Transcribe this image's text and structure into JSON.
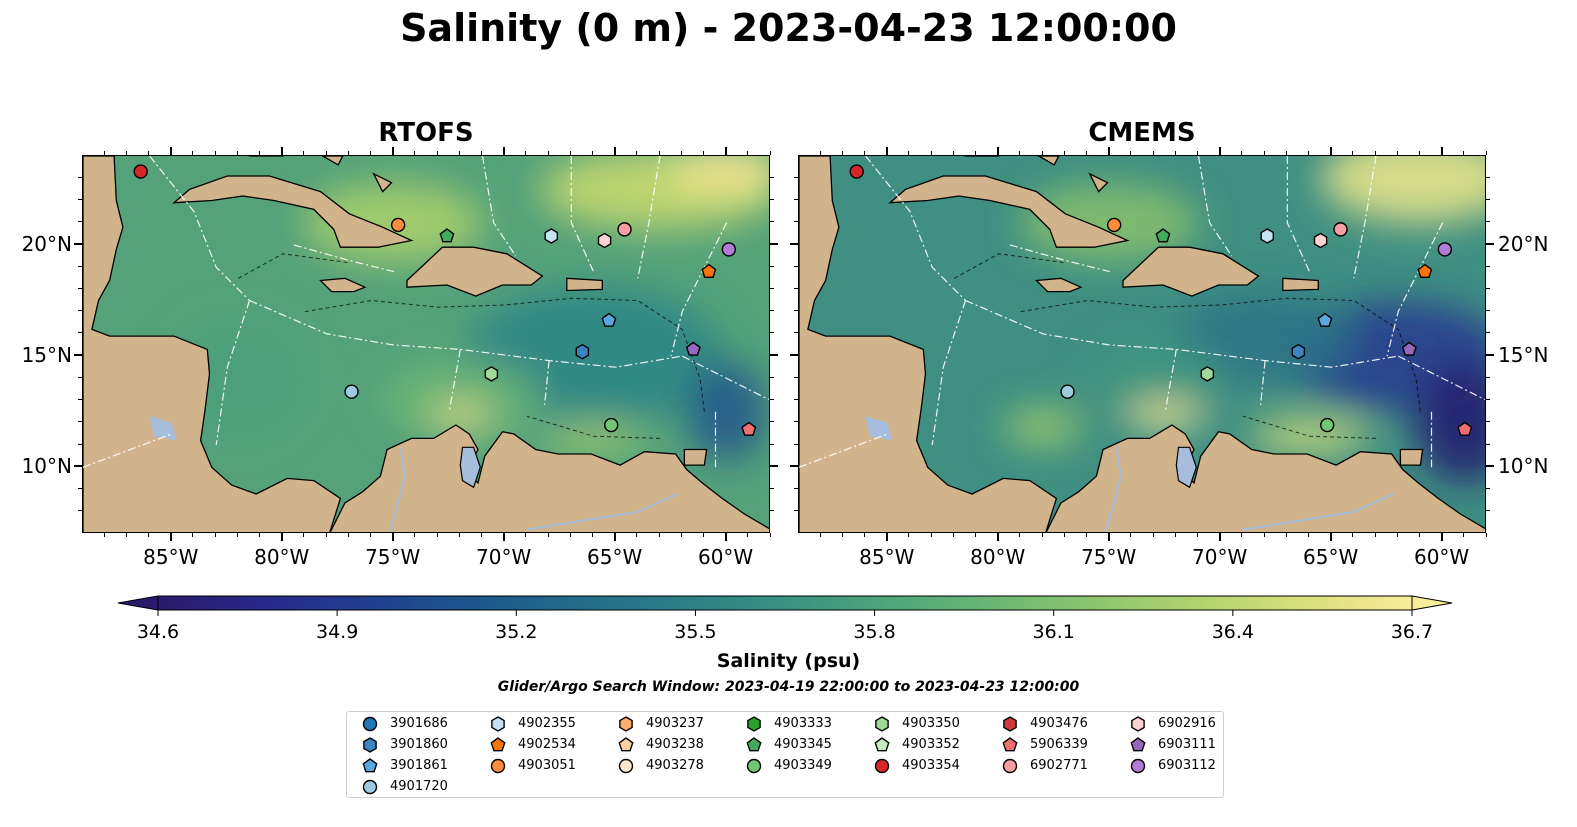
{
  "figure": {
    "title": "Salinity (0 m) - 2023-04-23 12:00:00",
    "panels": [
      {
        "title": "RTOFS"
      },
      {
        "title": "CMEMS"
      }
    ],
    "lon_ticks": [
      "85°W",
      "80°W",
      "75°W",
      "70°W",
      "65°W",
      "60°W"
    ],
    "lat_ticks": [
      "20°N",
      "15°N",
      "10°N"
    ],
    "extent": {
      "lon": [
        -89,
        -58
      ],
      "lat": [
        7,
        24
      ]
    },
    "colors": {
      "land": "#d2b48c",
      "ocean_outside": "#26195c",
      "lakes_rivers": "#a6bddb",
      "contour": "#000000",
      "eez_lines": "#ffffff"
    }
  },
  "colorbar": {
    "label": "Salinity (psu)",
    "colormap": "haline",
    "range": [
      34.6,
      36.7
    ],
    "extend": "both",
    "ticks": [
      "34.6",
      "34.9",
      "35.2",
      "35.5",
      "35.8",
      "36.1",
      "36.4",
      "36.7"
    ],
    "stops": [
      "#2a1a6b",
      "#27298a",
      "#1f3f8f",
      "#1c568c",
      "#226b89",
      "#2c7f86",
      "#3a9281",
      "#4ea67a",
      "#6bb773",
      "#8ec66e",
      "#b4d36f",
      "#d9df7e",
      "#f9ec9b"
    ]
  },
  "search_window": "Glider/Argo Search Window: 2023-04-19 22:00:00 to 2023-04-23 12:00:00",
  "legend": [
    {
      "id": "3901686",
      "marker": "circle",
      "color": "#1f77b4"
    },
    {
      "id": "3901860",
      "marker": "hexagon",
      "color": "#3a84c4"
    },
    {
      "id": "3901861",
      "marker": "pentagon",
      "color": "#5aa6e0"
    },
    {
      "id": "4901720",
      "marker": "circle",
      "color": "#9ecae1"
    },
    {
      "id": "4902355",
      "marker": "hexagon",
      "color": "#c6e2f5"
    },
    {
      "id": "4902534",
      "marker": "pentagon",
      "color": "#f97306"
    },
    {
      "id": "4903051",
      "marker": "circle",
      "color": "#fd8d3c"
    },
    {
      "id": "4903237",
      "marker": "hexagon",
      "color": "#fdae6b"
    },
    {
      "id": "4903238",
      "marker": "pentagon",
      "color": "#fdd0a2"
    },
    {
      "id": "4903278",
      "marker": "circle",
      "color": "#fee6ce"
    },
    {
      "id": "4903333",
      "marker": "hexagon",
      "color": "#2ca02c"
    },
    {
      "id": "4903345",
      "marker": "pentagon",
      "color": "#41ab5d"
    },
    {
      "id": "4903349",
      "marker": "circle",
      "color": "#74c476"
    },
    {
      "id": "4903350",
      "marker": "hexagon",
      "color": "#a1d99b"
    },
    {
      "id": "4903352",
      "marker": "pentagon",
      "color": "#c7e9c0"
    },
    {
      "id": "4903354",
      "marker": "circle",
      "color": "#d62728"
    },
    {
      "id": "4903476",
      "marker": "hexagon",
      "color": "#d03a3a"
    },
    {
      "id": "5906339",
      "marker": "pentagon",
      "color": "#f07070"
    },
    {
      "id": "6902771",
      "marker": "circle",
      "color": "#f4a0a0"
    },
    {
      "id": "6902916",
      "marker": "hexagon",
      "color": "#fcd3d3"
    },
    {
      "id": "6903111",
      "marker": "pentagon",
      "color": "#9467bd"
    },
    {
      "id": "6903112",
      "marker": "circle",
      "color": "#b07cd8"
    }
  ],
  "floats": [
    {
      "id": "4903354",
      "lon": -86.4,
      "lat": 23.3
    },
    {
      "id": "4903051",
      "lon": -74.8,
      "lat": 20.9
    },
    {
      "id": "4903345",
      "lon": -72.6,
      "lat": 20.4
    },
    {
      "id": "4902355",
      "lon": -67.9,
      "lat": 20.4
    },
    {
      "id": "6902916",
      "lon": -65.5,
      "lat": 20.2
    },
    {
      "id": "6902771",
      "lon": -64.6,
      "lat": 20.7
    },
    {
      "id": "6903112",
      "lon": -59.9,
      "lat": 19.8
    },
    {
      "id": "4902534",
      "lon": -60.8,
      "lat": 18.8
    },
    {
      "id": "3901861",
      "lon": -65.3,
      "lat": 16.6
    },
    {
      "id": "3901860",
      "lon": -66.5,
      "lat": 15.2
    },
    {
      "id": "6903111",
      "lon": -61.5,
      "lat": 15.3
    },
    {
      "id": "4903350",
      "lon": -70.6,
      "lat": 14.2
    },
    {
      "id": "4901720",
      "lon": -76.9,
      "lat": 13.4
    },
    {
      "id": "4903349",
      "lon": -65.2,
      "lat": 11.9
    },
    {
      "id": "5906339",
      "lon": -59.0,
      "lat": 11.7
    }
  ]
}
